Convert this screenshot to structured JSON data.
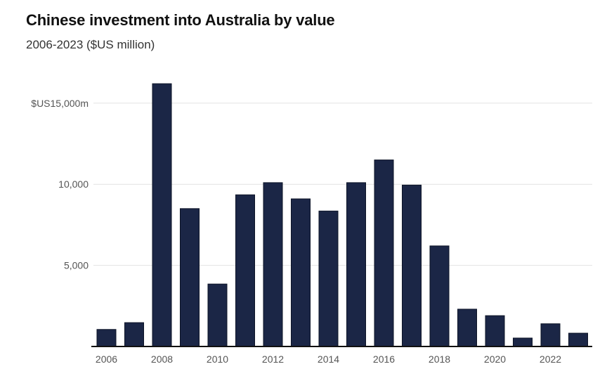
{
  "chart_data": {
    "type": "bar",
    "title": "Chinese investment into Australia by value",
    "subtitle": "2006-2023 ($US million)",
    "xlabel": "",
    "ylabel": "",
    "ylim": [
      0,
      17000
    ],
    "grid": true,
    "bar_color": "#1b2646",
    "categories": [
      "2006",
      "2007",
      "2008",
      "2009",
      "2010",
      "2011",
      "2012",
      "2013",
      "2014",
      "2015",
      "2016",
      "2017",
      "2018",
      "2019",
      "2020",
      "2021",
      "2022",
      "2023"
    ],
    "values": [
      1050,
      1470,
      16200,
      8500,
      3850,
      9350,
      10100,
      9100,
      8350,
      10100,
      11500,
      9950,
      6200,
      2300,
      1900,
      520,
      1400,
      820
    ],
    "y_ticks": [
      {
        "value": 5000,
        "label": "5,000"
      },
      {
        "value": 10000,
        "label": "10,000"
      },
      {
        "value": 15000,
        "label": "$US15,000m"
      }
    ],
    "x_tick_labels": [
      "2006",
      "2008",
      "2010",
      "2012",
      "2014",
      "2016",
      "2018",
      "2020",
      "2022"
    ]
  }
}
